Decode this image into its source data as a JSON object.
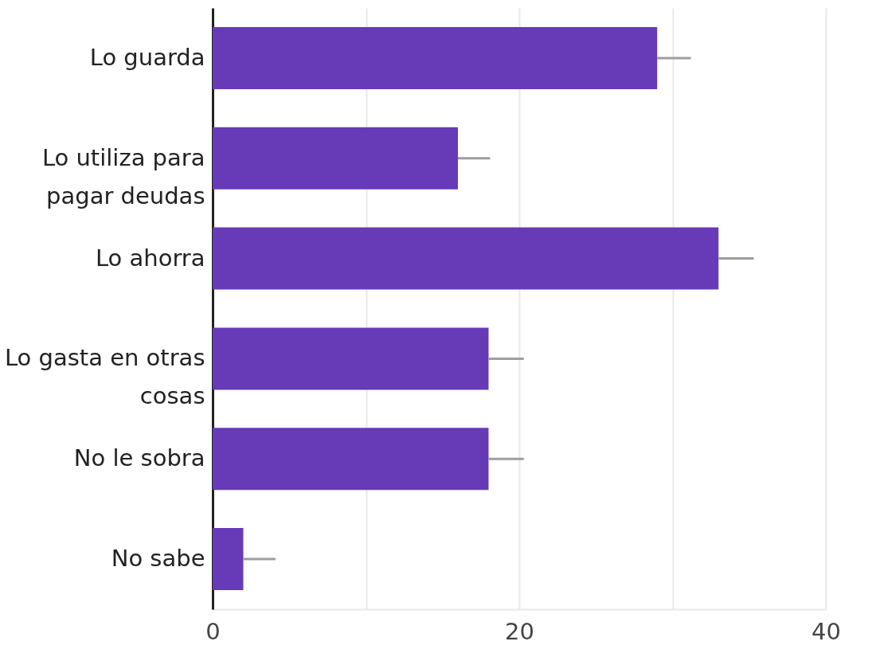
{
  "chart_data": {
    "type": "bar",
    "orientation": "horizontal",
    "categories": [
      "Lo guarda",
      "Lo utiliza para pagar deudas",
      "Lo ahorra",
      "Lo gasta en otras cosas",
      "No le sobra",
      "No sabe"
    ],
    "values": [
      29,
      16,
      33,
      18,
      18,
      2
    ],
    "errors": [
      [
        29,
        31.2
      ],
      [
        16,
        18.1
      ],
      [
        33,
        35.3
      ],
      [
        18,
        20.3
      ],
      [
        18,
        20.3
      ],
      [
        2,
        4.1
      ]
    ],
    "color": "#673ab7",
    "xlim": [
      0,
      40
    ],
    "xticks": [
      0,
      {
        "value": 10,
        "label": null
      },
      20,
      {
        "value": 30,
        "label": null
      },
      40
    ],
    "grid": "x"
  }
}
